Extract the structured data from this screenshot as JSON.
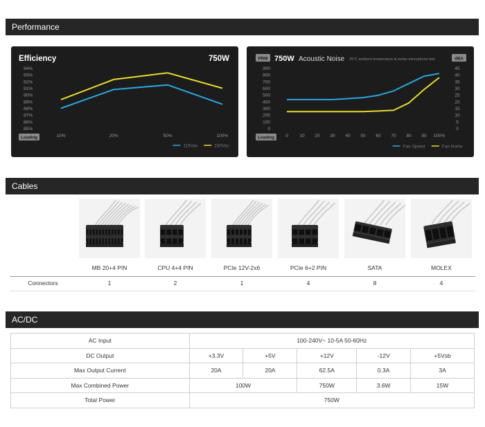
{
  "sections": {
    "performance": "Performance",
    "cables": "Cables",
    "acdc": "AC/DC"
  },
  "chart_data": [
    {
      "type": "line",
      "title": "Efficiency",
      "badge": "750W",
      "categories": [
        "10%",
        "20%",
        "50%",
        "100%"
      ],
      "ylim": [
        85,
        94
      ],
      "yticks": [
        "94%",
        "93%",
        "92%",
        "91%",
        "90%",
        "89%",
        "88%",
        "87%",
        "86%",
        "85%"
      ],
      "xlabel_tag": "Loading",
      "series": [
        {
          "name": "115Vac",
          "color": "#29a8e0",
          "values": [
            88.0,
            90.8,
            91.5,
            88.6
          ]
        },
        {
          "name": "230Vac",
          "color": "#e8dc2a",
          "values": [
            89.3,
            92.3,
            93.3,
            91.0
          ]
        }
      ]
    },
    {
      "type": "line",
      "title": "750W",
      "title2": "Acoustic Noise",
      "note": "25°C ambient temperature & meter-microphone test",
      "left_unit": "PRM",
      "right_unit": "dBA",
      "categories": [
        "0",
        "10",
        "20",
        "30",
        "40",
        "50",
        "60",
        "70",
        "80",
        "90",
        "100%"
      ],
      "ylim_left": [
        0,
        900
      ],
      "ylim_right": [
        0,
        45
      ],
      "yticks_left": [
        "900",
        "800",
        "700",
        "600",
        "500",
        "400",
        "300",
        "200",
        "100",
        "0"
      ],
      "yticks_right": [
        "45",
        "40",
        "35",
        "30",
        "25",
        "20",
        "15",
        "10",
        "5",
        "0"
      ],
      "xlabel_tag": "Loading",
      "series": [
        {
          "name": "Fan Speed",
          "color": "#29a8e0",
          "axis": "left",
          "values": [
            430,
            430,
            430,
            430,
            445,
            460,
            495,
            560,
            670,
            780,
            820
          ]
        },
        {
          "name": "Fan Noise",
          "color": "#e8dc2a",
          "axis": "right",
          "values": [
            12.5,
            12.5,
            12.5,
            12.5,
            12.5,
            12.5,
            13,
            13.5,
            19,
            29,
            38
          ]
        }
      ]
    }
  ],
  "cables": {
    "row_label": "Connectors",
    "items": [
      {
        "name": "MB 20+4 PIN",
        "count": "1",
        "icon": "mb-connector-icon"
      },
      {
        "name": "CPU 4+4 PIN",
        "count": "2",
        "icon": "cpu-connector-icon"
      },
      {
        "name": "PCIe 12V-2x6",
        "count": "1",
        "icon": "pcie-12v-connector-icon"
      },
      {
        "name": "PCIe 6+2 PIN",
        "count": "4",
        "icon": "pcie-connector-icon"
      },
      {
        "name": "SATA",
        "count": "8",
        "icon": "sata-connector-icon"
      },
      {
        "name": "MOLEX",
        "count": "4",
        "icon": "molex-connector-icon"
      }
    ]
  },
  "acdc": {
    "ac_input_label": "AC Input",
    "ac_input_value": "100-240V~  10-5A  50-60Hz",
    "dc_output_label": "DC Output",
    "dc_outputs": [
      "+3.3V",
      "+5V",
      "+12V",
      "-12V",
      "+5Vsb"
    ],
    "max_current_label": "Max Output Current",
    "max_currents": [
      "20A",
      "20A",
      "62.5A",
      "0.3A",
      "3A"
    ],
    "max_combined_label": "Max Combined Power",
    "max_combined_3v5v": "100W",
    "max_combined_12v": "750W",
    "max_combined_n12v": "3.6W",
    "max_combined_5vsb": "15W",
    "total_power_label": "Total Power",
    "total_power_value": "750W"
  }
}
